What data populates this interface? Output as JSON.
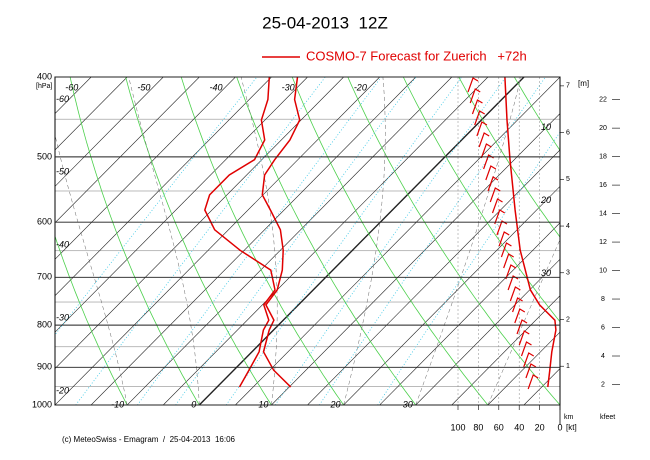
{
  "chart_data": {
    "type": "emagram",
    "title": "25-04-2013  12Z",
    "legend": "COSMO-7 Forecast for Zuerich   +72h",
    "legend_color": "#e00000",
    "footer": "(c) MeteoSwiss - Emagram  /  25-04-2013  16:06",
    "y_label": "[hPa]",
    "ylim": [
      1000,
      400
    ],
    "log_y": true,
    "yticks": [
      400,
      500,
      600,
      700,
      800,
      900,
      1000
    ],
    "xlim": [
      -20,
      50
    ],
    "xticks": [
      -10,
      0,
      10,
      20,
      30
    ],
    "isotherm_labels_top": [
      -60,
      -50,
      -40,
      -30,
      -20
    ],
    "isotherm_labels_right": [
      10,
      20,
      30
    ],
    "x2_label": "[kt]",
    "x2lim": [
      100,
      0
    ],
    "x2ticks": [
      100,
      80,
      60,
      40,
      20,
      0
    ],
    "y2_label": "[m]",
    "y2_unit": "km",
    "y2lim": [
      0.17,
      7.19
    ],
    "y2ticks": [
      1,
      2,
      3,
      4,
      5,
      6,
      7
    ],
    "y3_unit": "kfeet",
    "y3lim": [
      0.56,
      23.59
    ],
    "y3ticks": [
      2,
      4,
      6,
      8,
      10,
      12,
      14,
      16,
      18,
      20,
      22
    ],
    "series": [
      {
        "color": "#e00000",
        "x": [
          10.2,
          5.5,
          1.6,
          -0.6,
          -1.3,
          -4.5,
          -5.0,
          -7.0,
          -9.6,
          -12.8,
          -16.9,
          -20.1,
          -22.5,
          -23.2,
          -23.8,
          -25.2,
          -28.7,
          -31.4
        ],
        "values": [
          951,
          907,
          862,
          811,
          789,
          756,
          725,
          686,
          649,
          613,
          580,
          556,
          526,
          504,
          477,
          451,
          426,
          400
        ]
      },
      {
        "color": "#e00000",
        "x": [
          3.1,
          2.1,
          1.0,
          -1.4,
          -2.0,
          -4.8,
          -5.3,
          -8.6,
          -15.6,
          -21.9,
          -26.0,
          -27.4,
          -27.4,
          -26.0,
          -27.3,
          -30.5,
          -32.4,
          -35.3
        ],
        "values": [
          951,
          907,
          862,
          811,
          789,
          756,
          725,
          686,
          649,
          613,
          580,
          556,
          526,
          504,
          477,
          451,
          426,
          400
        ]
      },
      {
        "color": "#e00000",
        "axis": "x2",
        "x": [
          12,
          10,
          8,
          4,
          5,
          20,
          29,
          39,
          44,
          49,
          52,
          54
        ],
        "values": [
          951,
          907,
          862,
          811,
          789,
          756,
          725,
          649,
          580,
          504,
          451,
          400
        ]
      }
    ]
  }
}
